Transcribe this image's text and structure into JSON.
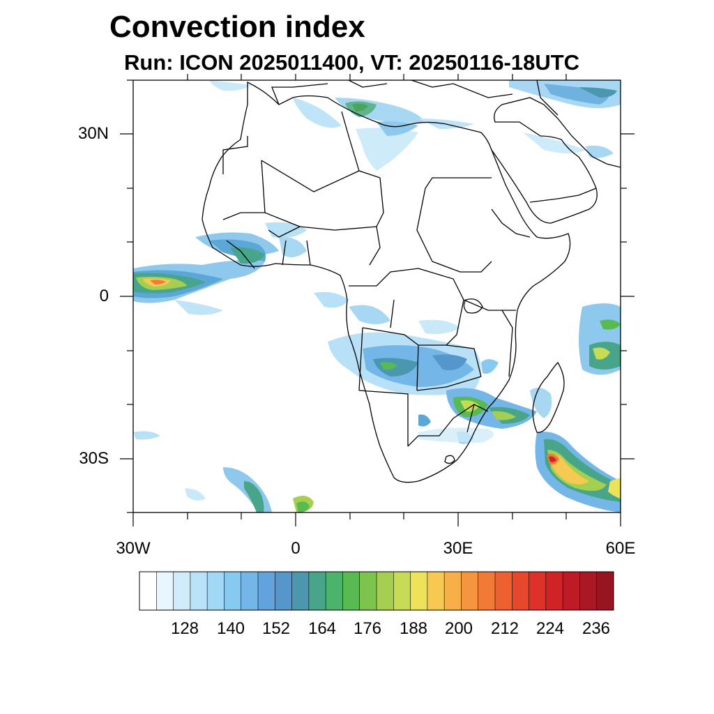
{
  "title": "Convection index",
  "subtitle": "Run: ICON 2025011400,  VT: 20250116-18UTC",
  "axes": {
    "lat_labels": [
      "30N",
      "0",
      "30S"
    ],
    "lon_labels": [
      "30W",
      "0",
      "30E",
      "60E"
    ],
    "lon_range": [
      -30,
      60
    ],
    "lat_range": [
      -40,
      40
    ]
  },
  "colorbar": {
    "labels": [
      "128",
      "140",
      "152",
      "164",
      "176",
      "188",
      "200",
      "212",
      "224",
      "236"
    ],
    "colors": [
      "#ffffff",
      "#e8f6fd",
      "#d0ecfa",
      "#b8e2f8",
      "#a0d8f5",
      "#88c9ef",
      "#74b6e7",
      "#62a3dd",
      "#5596cd",
      "#4c97b0",
      "#48a589",
      "#4bb36c",
      "#58bb51",
      "#7dc44e",
      "#a4cf51",
      "#c8db54",
      "#ede25a",
      "#f6c952",
      "#f7b049",
      "#f59540",
      "#f27a37",
      "#ee6030",
      "#e7482c",
      "#de3129",
      "#cf2328",
      "#bd1c26",
      "#a91824",
      "#961521"
    ]
  }
}
